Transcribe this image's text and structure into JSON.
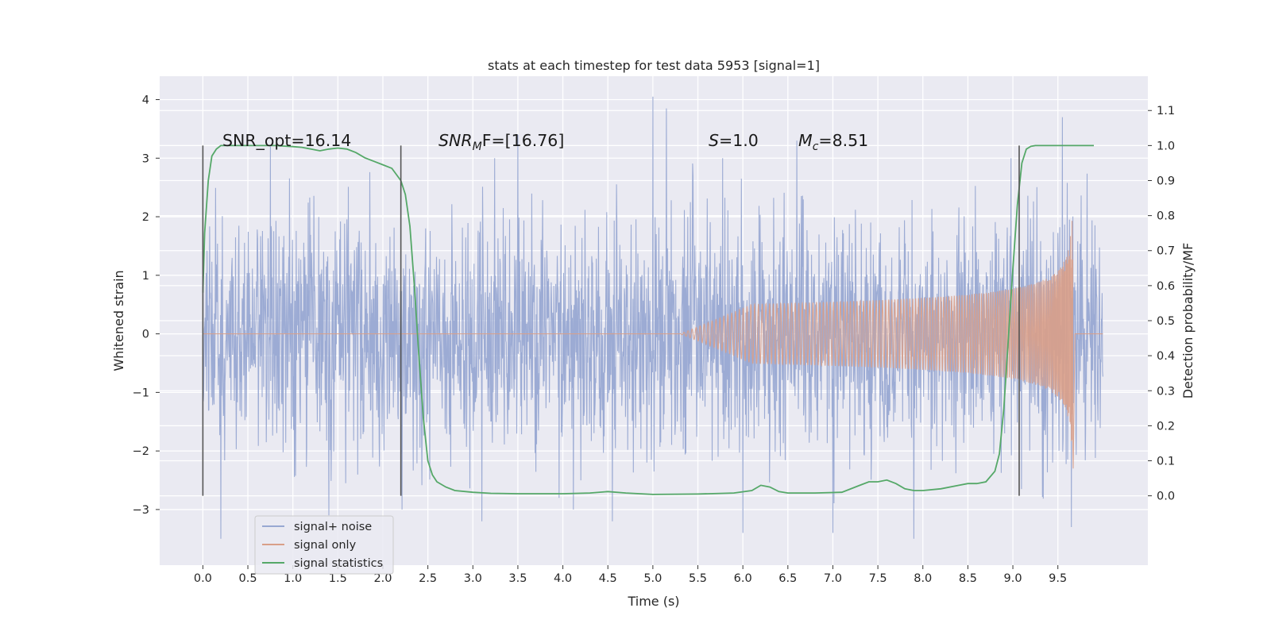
{
  "chart_data": {
    "type": "line",
    "title": "stats at each timestep for test data 5953 [signal=1]",
    "xlabel": "Time (s)",
    "ylabel_left": "Whitened strain",
    "ylabel_right": "Detection probability/MF",
    "xlim": [
      -0.48,
      10.5
    ],
    "ylim_left": [
      -3.95,
      4.4
    ],
    "ylim_right": [
      -0.198,
      1.198
    ],
    "x_ticks": [
      "0.0",
      "0.5",
      "1.0",
      "1.5",
      "2.0",
      "2.5",
      "3.0",
      "3.5",
      "4.0",
      "4.5",
      "5.0",
      "5.5",
      "6.0",
      "6.5",
      "7.0",
      "7.5",
      "8.0",
      "8.5",
      "9.0",
      "9.5"
    ],
    "y_ticks_left": [
      "−3",
      "−2",
      "−1",
      "0",
      "1",
      "2",
      "3",
      "4"
    ],
    "y_ticks_right": [
      "0.0",
      "0.1",
      "0.2",
      "0.3",
      "0.4",
      "0.5",
      "0.6",
      "0.7",
      "0.8",
      "0.9",
      "1.0",
      "1.1"
    ],
    "grid": true,
    "legend_position": "lower-left",
    "colors": {
      "background": "#eaeaf2",
      "grid": "#ffffff",
      "signal_noise": "#98a8d2",
      "signal_only": "#d99f88",
      "signal_statistics": "#55a868",
      "vlines": "#555555"
    },
    "annotations": {
      "snr_opt": "SNR_opt=16.14",
      "snr_mf_base": "SNR",
      "snr_mf_sub": "M",
      "snr_mf_rest": "F=[16.76]",
      "s_sym": "S",
      "s_val": "=1.0",
      "mc_sym": "M",
      "mc_sub": "c",
      "mc_val": "=8.51"
    },
    "vertical_lines": {
      "x": [
        0.0,
        2.2,
        9.07
      ],
      "y_range_right": [
        0.0,
        1.0
      ]
    },
    "series": [
      {
        "name": "signal+ noise",
        "axis": "left",
        "x_range": [
          0.0,
          10.0
        ],
        "typical_range": [
          -2.2,
          2.2
        ],
        "extremes": [
          {
            "x": 0.2,
            "y": -3.5
          },
          {
            "x": 0.75,
            "y": 3.2
          },
          {
            "x": 1.4,
            "y": -3.1
          },
          {
            "x": 3.1,
            "y": -3.2
          },
          {
            "x": 3.5,
            "y": 3.4
          },
          {
            "x": 4.55,
            "y": -3.2
          },
          {
            "x": 5.0,
            "y": 4.05
          },
          {
            "x": 5.15,
            "y": 3.85
          },
          {
            "x": 6.0,
            "y": -3.4
          },
          {
            "x": 6.6,
            "y": 3.3
          },
          {
            "x": 7.0,
            "y": -3.4
          },
          {
            "x": 7.9,
            "y": -3.5
          },
          {
            "x": 9.55,
            "y": 3.7
          },
          {
            "x": 9.65,
            "y": -3.3
          }
        ]
      },
      {
        "name": "signal only",
        "axis": "left",
        "chirp_start": 5.3,
        "merger_time": 9.67,
        "peak_amplitude": 2.0
      },
      {
        "name": "signal statistics",
        "axis": "right",
        "x": [
          0.0,
          0.02,
          0.06,
          0.1,
          0.15,
          0.2,
          0.3,
          0.4,
          0.6,
          0.8,
          1.0,
          1.1,
          1.2,
          1.3,
          1.4,
          1.5,
          1.6,
          1.7,
          1.8,
          1.9,
          2.0,
          2.1,
          2.2,
          2.25,
          2.3,
          2.35,
          2.4,
          2.45,
          2.5,
          2.55,
          2.6,
          2.7,
          2.8,
          3.0,
          3.2,
          3.5,
          4.0,
          4.3,
          4.5,
          4.7,
          5.0,
          5.5,
          5.9,
          6.1,
          6.2,
          6.3,
          6.4,
          6.5,
          6.8,
          7.1,
          7.3,
          7.4,
          7.5,
          7.6,
          7.7,
          7.8,
          7.9,
          8.0,
          8.2,
          8.4,
          8.5,
          8.6,
          8.7,
          8.8,
          8.85,
          8.9,
          8.95,
          9.0,
          9.05,
          9.1,
          9.15,
          9.2,
          9.25,
          9.3,
          9.5,
          9.7,
          9.9
        ],
        "y": [
          0.58,
          0.75,
          0.9,
          0.97,
          0.99,
          1.0,
          1.0,
          1.0,
          1.0,
          1.0,
          0.997,
          0.995,
          0.99,
          0.985,
          0.99,
          0.993,
          0.99,
          0.98,
          0.965,
          0.955,
          0.945,
          0.935,
          0.9,
          0.86,
          0.77,
          0.6,
          0.4,
          0.22,
          0.1,
          0.06,
          0.04,
          0.025,
          0.015,
          0.01,
          0.007,
          0.006,
          0.006,
          0.008,
          0.012,
          0.008,
          0.004,
          0.005,
          0.008,
          0.015,
          0.03,
          0.025,
          0.012,
          0.008,
          0.008,
          0.01,
          0.03,
          0.04,
          0.04,
          0.045,
          0.035,
          0.02,
          0.015,
          0.015,
          0.02,
          0.03,
          0.035,
          0.035,
          0.04,
          0.07,
          0.12,
          0.25,
          0.45,
          0.65,
          0.83,
          0.95,
          0.99,
          0.998,
          1.0,
          1.0,
          1.0,
          1.0,
          1.0
        ]
      }
    ]
  }
}
